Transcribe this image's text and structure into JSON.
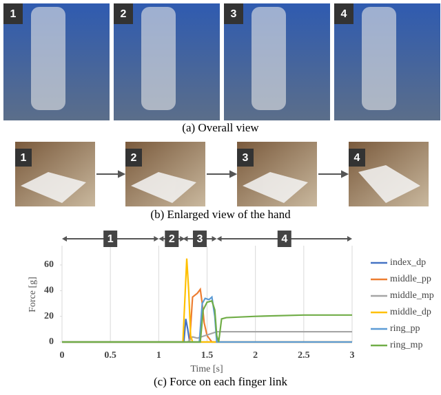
{
  "photos": {
    "overall": {
      "labels": [
        "1",
        "2",
        "3",
        "4"
      ],
      "caption": "(a) Overall view"
    },
    "enlarged": {
      "labels": [
        "1",
        "2",
        "3",
        "4"
      ],
      "caption": "(b) Enlarged view of the hand"
    }
  },
  "chart_data": {
    "type": "line",
    "title": "(c) Force on each finger link",
    "x_label": "Time [s]",
    "y_label": "Force [g]",
    "xlim": [
      0,
      3
    ],
    "ylim": [
      0,
      75
    ],
    "xticks": [
      0,
      0.5,
      1,
      1.5,
      2,
      2.5,
      3
    ],
    "yticks": [
      0,
      20,
      40,
      60
    ],
    "grid": true,
    "legend": "right",
    "phases": [
      {
        "label": "1",
        "start": 0,
        "end": 1
      },
      {
        "label": "2",
        "start": 1,
        "end": 1.27
      },
      {
        "label": "3",
        "start": 1.25,
        "end": 1.6
      },
      {
        "label": "4",
        "start": 1.6,
        "end": 3
      }
    ],
    "series": [
      {
        "name": "index_dp",
        "color": "#4472c4",
        "x": [
          0,
          1.26,
          1.28,
          1.3,
          1.32,
          3
        ],
        "values": [
          0,
          0,
          18,
          10,
          0,
          0
        ]
      },
      {
        "name": "middle_pp",
        "color": "#ed7d31",
        "x": [
          0,
          1.32,
          1.35,
          1.4,
          1.43,
          1.45,
          1.47,
          1.5,
          1.55,
          3
        ],
        "values": [
          0,
          0,
          35,
          38,
          41,
          30,
          15,
          5,
          0,
          0
        ]
      },
      {
        "name": "middle_mp",
        "color": "#a5a5a5",
        "x": [
          0,
          1.3,
          1.35,
          1.4,
          1.6,
          2,
          2.5,
          3
        ],
        "values": [
          0,
          0,
          4,
          3,
          8,
          8,
          8,
          8
        ]
      },
      {
        "name": "middle_dp",
        "color": "#ffc000",
        "x": [
          0,
          1.25,
          1.29,
          1.31,
          1.33,
          1.35,
          3
        ],
        "values": [
          0,
          0,
          65,
          40,
          5,
          0,
          0
        ]
      },
      {
        "name": "ring_pp",
        "color": "#5b9bd5",
        "x": [
          0,
          1.42,
          1.45,
          1.48,
          1.52,
          1.55,
          1.58,
          1.6,
          3
        ],
        "values": [
          0,
          0,
          30,
          34,
          33,
          35,
          20,
          0,
          0
        ]
      },
      {
        "name": "ring_mp",
        "color": "#70ad47",
        "x": [
          0,
          1.43,
          1.46,
          1.5,
          1.55,
          1.58,
          1.6,
          1.62,
          1.65,
          1.7,
          2,
          2.5,
          3
        ],
        "values": [
          0,
          0,
          25,
          31,
          32,
          25,
          5,
          0,
          18,
          19,
          20,
          21,
          21
        ]
      }
    ]
  }
}
